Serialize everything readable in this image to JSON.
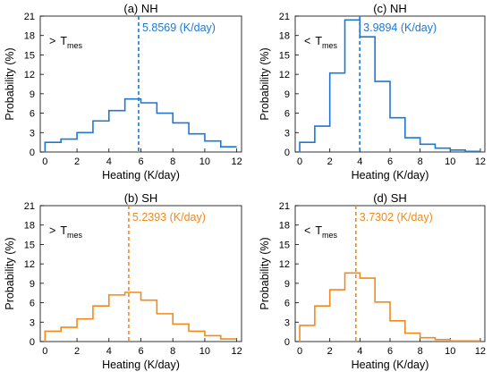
{
  "chart_data": [
    {
      "type": "line",
      "panel": "a",
      "title": "(a) NH",
      "xlabel": "Heating (K/day)",
      "ylabel": "Probability (%)",
      "condition": {
        "symbol": ">",
        "main": "T",
        "sub": "mes"
      },
      "mean_label": "5.8569 (K/day)",
      "mean_value": 5.8569,
      "color": "#1f77d4",
      "xlim": [
        -0.3,
        12.3
      ],
      "ylim": [
        0,
        21
      ],
      "xticks": [
        "0",
        "2",
        "4",
        "6",
        "8",
        "10",
        "12"
      ],
      "yticks": [
        "0",
        "3",
        "6",
        "9",
        "12",
        "15",
        "18",
        "21"
      ],
      "bin_edges": [
        0,
        1,
        2,
        3,
        4,
        5,
        6,
        7,
        8,
        9,
        10,
        11,
        12
      ],
      "values": [
        1.5,
        2.0,
        3.0,
        4.8,
        6.4,
        8.2,
        7.6,
        6.0,
        4.5,
        2.8,
        1.7,
        0.8
      ]
    },
    {
      "type": "line",
      "panel": "c",
      "title": "(c) NH",
      "xlabel": "Heating (K/day)",
      "ylabel": "Probability (%)",
      "condition": {
        "symbol": "<",
        "main": "T",
        "sub": "mes"
      },
      "mean_label": "3.9894 (K/day)",
      "mean_value": 3.9894,
      "color": "#1f77d4",
      "xlim": [
        -0.3,
        12.3
      ],
      "ylim": [
        0,
        21
      ],
      "xticks": [
        "0",
        "2",
        "4",
        "6",
        "8",
        "10",
        "12"
      ],
      "yticks": [
        "0",
        "3",
        "6",
        "9",
        "12",
        "15",
        "18",
        "21"
      ],
      "bin_edges": [
        0,
        1,
        2,
        3,
        4,
        5,
        6,
        7,
        8,
        9,
        10,
        11,
        12
      ],
      "values": [
        1.5,
        4.0,
        12.2,
        20.4,
        17.8,
        10.9,
        5.3,
        2.2,
        1.2,
        0.6,
        0.3,
        0.1
      ]
    },
    {
      "type": "line",
      "panel": "b",
      "title": "(b) SH",
      "xlabel": "Heating (K/day)",
      "ylabel": "Probability (%)",
      "condition": {
        "symbol": ">",
        "main": "T",
        "sub": "mes"
      },
      "mean_label": "5.2393 (K/day)",
      "mean_value": 5.2393,
      "color": "#f28a1b",
      "xlim": [
        -0.3,
        12.3
      ],
      "ylim": [
        0,
        21
      ],
      "xticks": [
        "0",
        "2",
        "4",
        "6",
        "8",
        "10",
        "12"
      ],
      "yticks": [
        "0",
        "3",
        "6",
        "9",
        "12",
        "15",
        "18",
        "21"
      ],
      "bin_edges": [
        0,
        1,
        2,
        3,
        4,
        5,
        6,
        7,
        8,
        9,
        10,
        11,
        12
      ],
      "values": [
        1.6,
        2.2,
        3.5,
        5.5,
        7.2,
        7.6,
        6.4,
        4.3,
        2.7,
        1.6,
        0.9,
        0.4
      ]
    },
    {
      "type": "line",
      "panel": "d",
      "title": "(d) SH",
      "xlabel": "Heating (K/day)",
      "ylabel": "Probability (%)",
      "condition": {
        "symbol": "<",
        "main": "T",
        "sub": "mes"
      },
      "mean_label": "3.7302 (K/day)",
      "mean_value": 3.7302,
      "color": "#f28a1b",
      "xlim": [
        -0.3,
        12.3
      ],
      "ylim": [
        0,
        21
      ],
      "xticks": [
        "0",
        "2",
        "4",
        "6",
        "8",
        "10",
        "12"
      ],
      "yticks": [
        "0",
        "3",
        "6",
        "9",
        "12",
        "15",
        "18",
        "21"
      ],
      "bin_edges": [
        0,
        1,
        2,
        3,
        4,
        5,
        6,
        7,
        8,
        9,
        10,
        11,
        12
      ],
      "values": [
        2.5,
        5.5,
        8.0,
        10.6,
        9.8,
        6.1,
        3.2,
        1.3,
        0.6,
        0.3,
        0.1,
        0.1
      ]
    }
  ]
}
